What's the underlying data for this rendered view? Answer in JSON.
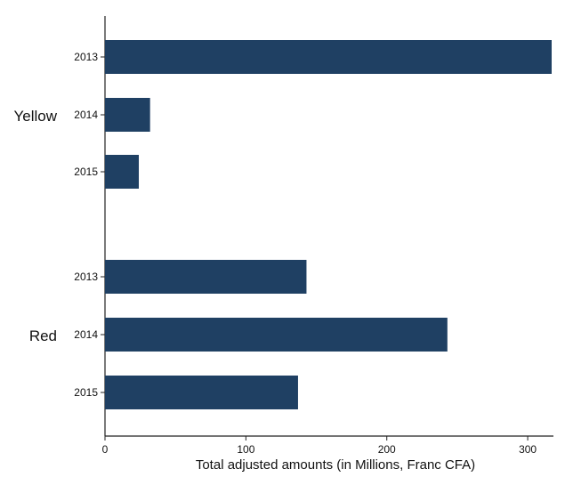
{
  "chart_data": {
    "type": "bar",
    "orientation": "horizontal",
    "xlabel": "Total adjusted amounts (in Millions, Franc CFA)",
    "xlim": [
      0,
      317
    ],
    "xticks": [
      0,
      100,
      200,
      300
    ],
    "bar_color": "#1f4063",
    "axis_color": "#222222",
    "grid": false,
    "legend": "none",
    "groups": [
      {
        "name": "Yellow",
        "categories": [
          "2013",
          "2014",
          "2015"
        ],
        "values": [
          317,
          32,
          24
        ]
      },
      {
        "name": "Red",
        "categories": [
          "2013",
          "2014",
          "2015"
        ],
        "values": [
          143,
          243,
          137
        ]
      }
    ]
  }
}
